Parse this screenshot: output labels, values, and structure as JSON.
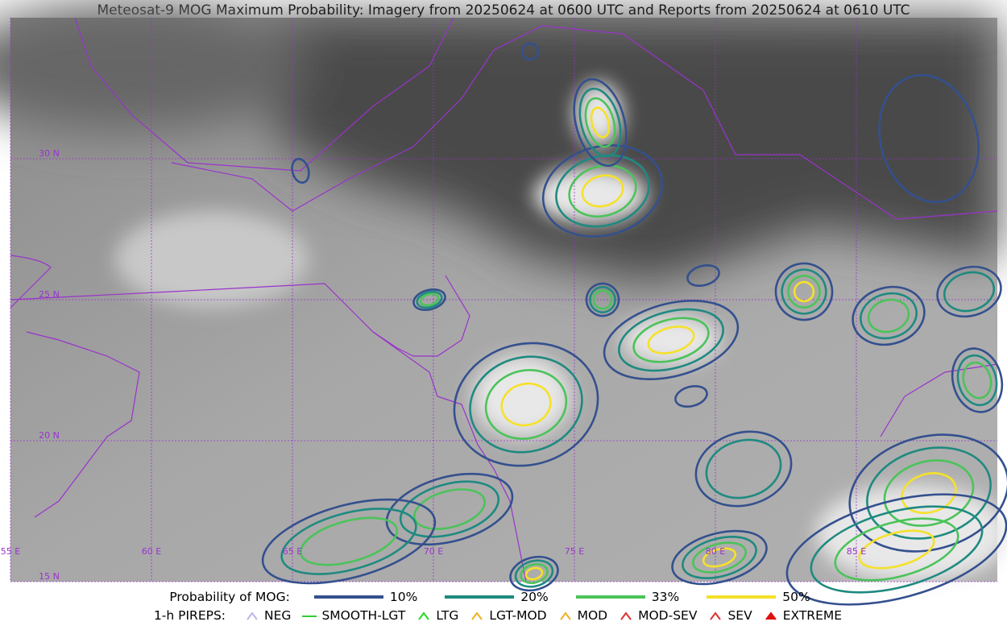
{
  "title": "Meteosat-9 MOG Maximum Probability: Imagery from 20250624 at 0600 UTC and Reports from 20250624 at 0610 UTC",
  "map": {
    "lon_labels": [
      "55 E",
      "60 E",
      "65 E",
      "70 E",
      "75 E",
      "80 E",
      "85 E"
    ],
    "lat_labels": [
      "30 N",
      "25 N",
      "20 N",
      "15 N"
    ]
  },
  "legend": {
    "probability": {
      "title": "Probability of MOG:",
      "items": [
        {
          "label": "10%",
          "color": "#34508e"
        },
        {
          "label": "20%",
          "color": "#1f8a80"
        },
        {
          "label": "33%",
          "color": "#4bc35a"
        },
        {
          "label": "50%",
          "color": "#f5e12a"
        }
      ]
    },
    "pireps": {
      "title": "1-h PIREPS:",
      "items": [
        {
          "label": "NEG",
          "color": "#b7b7f0"
        },
        {
          "label": "SMOOTH-LGT",
          "color": "#33cc33"
        },
        {
          "label": "LTG",
          "color": "#22dd22"
        },
        {
          "label": "LGT-MOD",
          "color": "#f0b020"
        },
        {
          "label": "MOD",
          "color": "#f0b020"
        },
        {
          "label": "MOD-SEV",
          "color": "#e03030"
        },
        {
          "label": "SEV",
          "color": "#e03030"
        },
        {
          "label": "EXTREME",
          "color": "#e01010"
        }
      ]
    }
  }
}
